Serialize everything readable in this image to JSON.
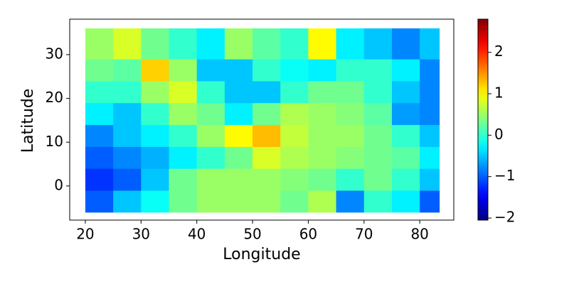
{
  "chart_data": {
    "type": "heatmap",
    "x_label": "Longitude",
    "y_label": "Latitude",
    "xbins": [
      20,
      25,
      30,
      35,
      40,
      45,
      50,
      55,
      60,
      65,
      70,
      75,
      80,
      83.5
    ],
    "ybins": [
      -6,
      -1,
      4,
      9,
      14,
      19,
      24,
      29,
      36
    ],
    "z": [
      [
        -1.0,
        -0.5,
        -0.2,
        0.3,
        0.5,
        0.5,
        0.5,
        0.3,
        0.6,
        -0.8,
        0,
        -0.3,
        -1.0
      ],
      [
        -1.2,
        -1.0,
        -0.5,
        0.3,
        0.5,
        0.5,
        0.5,
        0.4,
        0.3,
        0,
        0.3,
        0,
        -0.5
      ],
      [
        -1.0,
        -0.8,
        -0.6,
        -0.3,
        0,
        0.3,
        0.8,
        0.6,
        0.5,
        0.4,
        0.3,
        0.2,
        -0.3
      ],
      [
        -0.8,
        -0.5,
        -0.3,
        0,
        0.5,
        1.0,
        1.3,
        0.7,
        0.5,
        0.5,
        0.3,
        0,
        -0.5
      ],
      [
        -0.3,
        -0.5,
        0,
        0.5,
        0.3,
        -0.3,
        0.3,
        0.6,
        0.5,
        0.4,
        0.2,
        -0.7,
        -0.8
      ],
      [
        0,
        0,
        0.5,
        0.8,
        0,
        -0.5,
        -0.5,
        0,
        0.3,
        0.3,
        0,
        -0.5,
        -0.8
      ],
      [
        0.3,
        0.2,
        1.2,
        0.5,
        -0.5,
        -0.5,
        0,
        -0.2,
        -0.3,
        0,
        0,
        -0.3,
        -0.8
      ],
      [
        0.5,
        0.8,
        0.3,
        0,
        -0.3,
        0.5,
        0.2,
        0,
        1.0,
        -0.3,
        -0.5,
        -0.8,
        -0.5
      ]
    ],
    "colormap": "jet",
    "xlim": [
      17.2,
      86.1
    ],
    "ylim": [
      -7.8,
      38.1
    ],
    "xticks": [
      20,
      30,
      40,
      50,
      60,
      70,
      80
    ],
    "yticks": [
      0,
      10,
      20,
      30
    ],
    "clim": [
      -2.05,
      2.8
    ],
    "cticks": [
      {
        "value": -2,
        "label": "−2"
      },
      {
        "value": -1,
        "label": "−1"
      },
      0,
      1,
      2
    ]
  }
}
